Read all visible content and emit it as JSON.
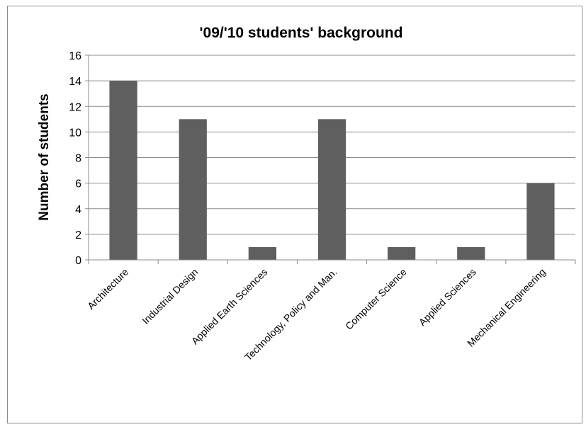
{
  "chart_data": {
    "type": "bar",
    "title": "'09/'10 students' background",
    "ylabel": "Number of students",
    "xlabel": "",
    "categories": [
      "Architecture",
      "Industrial Design",
      "Applied Earth Sciences",
      "Technology, Policy and Man.",
      "Computer Science",
      "Applied Sciences",
      "Mechanical Engineering"
    ],
    "values": [
      14,
      11,
      1,
      11,
      1,
      1,
      6
    ],
    "ylim": [
      0,
      16
    ],
    "yticks": [
      0,
      2,
      4,
      6,
      8,
      10,
      12,
      14,
      16
    ],
    "grid": true,
    "legend": "none",
    "bar_color": "#5f5f5f",
    "grid_color": "#8c8c8c"
  }
}
